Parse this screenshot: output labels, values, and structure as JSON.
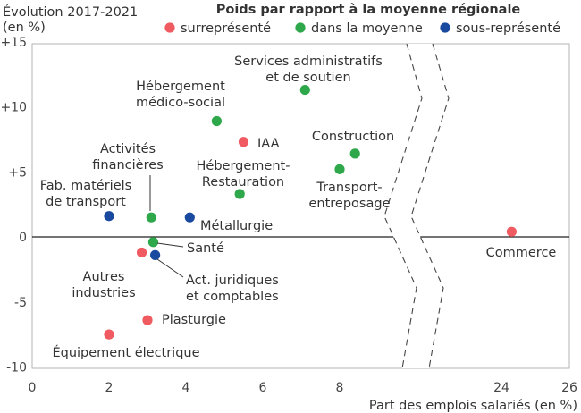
{
  "chart_data": {
    "type": "scatter",
    "title": "",
    "ylabel_lines": [
      "Évolution 2017-2021",
      "(en %)"
    ],
    "xlabel": "Part des emplois salariés (en %)",
    "legend": {
      "title": "Poids par rapport à la moyenne régionale",
      "items": [
        {
          "key": "sur",
          "label": "surreprésenté",
          "color": "#EF5B61"
        },
        {
          "key": "moy",
          "label": "dans la moyenne",
          "color": "#2EA84A"
        },
        {
          "key": "sous",
          "label": "sous-représenté",
          "color": "#1A4AA0"
        }
      ]
    },
    "x_ticks_left": [
      "0",
      "2",
      "4",
      "6",
      "8"
    ],
    "x_ticks_right": [
      "24",
      "26"
    ],
    "x_range_left": [
      0,
      9.4
    ],
    "x_range_right": [
      22.4,
      26
    ],
    "y_ticks": [
      "+15",
      "+10",
      "+5",
      "0",
      "-5",
      "-10"
    ],
    "y_range": [
      -10,
      15
    ],
    "axis_break": true,
    "points": [
      {
        "lines": [
          "Services administratifs",
          "et de soutien"
        ],
        "x": 7.1,
        "y": 11.3,
        "cat": "moy"
      },
      {
        "lines": [
          "Hébergement",
          "médico-social"
        ],
        "x": 4.8,
        "y": 8.9,
        "cat": "moy"
      },
      {
        "lines": [
          "IAA"
        ],
        "x": 5.5,
        "y": 7.3,
        "cat": "sur"
      },
      {
        "lines": [
          "Construction"
        ],
        "x": 8.4,
        "y": 6.4,
        "cat": "moy"
      },
      {
        "lines": [
          "Transport-",
          "entreposage"
        ],
        "x": 8.0,
        "y": 5.2,
        "cat": "moy"
      },
      {
        "lines": [
          "Hébergement-",
          "Restauration"
        ],
        "x": 5.4,
        "y": 3.3,
        "cat": "moy"
      },
      {
        "lines": [
          "Activités",
          "financières"
        ],
        "x": 3.1,
        "y": 1.5,
        "cat": "moy"
      },
      {
        "lines": [
          "Fab. matériels",
          "de transport"
        ],
        "x": 2.0,
        "y": 1.6,
        "cat": "sous"
      },
      {
        "lines": [
          "Métallurgie"
        ],
        "x": 4.1,
        "y": 1.5,
        "cat": "sous"
      },
      {
        "lines": [
          "Commerce"
        ],
        "x": 24.3,
        "y": 0.4,
        "cat": "sur"
      },
      {
        "lines": [
          "Santé"
        ],
        "x": 3.15,
        "y": -0.4,
        "cat": "moy"
      },
      {
        "lines": [
          "Autres",
          "industries"
        ],
        "x": 2.85,
        "y": -1.2,
        "cat": "sur"
      },
      {
        "lines": [
          "Act. juridiques",
          "et comptables"
        ],
        "x": 3.2,
        "y": -1.4,
        "cat": "sous"
      },
      {
        "lines": [
          "Plasturgie"
        ],
        "x": 3.0,
        "y": -6.4,
        "cat": "sur"
      },
      {
        "lines": [
          "Équipement électrique"
        ],
        "x": 2.0,
        "y": -7.5,
        "cat": "sur"
      }
    ]
  }
}
